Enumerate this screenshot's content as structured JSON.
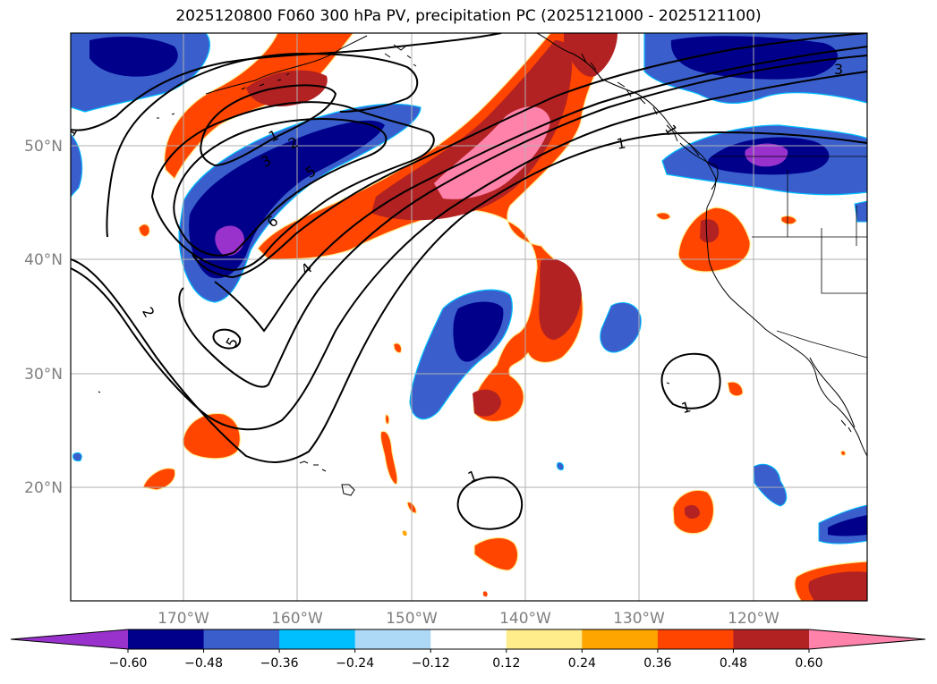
{
  "title": "2025120800 F060 300 hPa PV, precipitation PC (2025121000 - 2025121100)",
  "map": {
    "longitude_labels": [
      "170°W",
      "160°W",
      "150°W",
      "140°W",
      "130°W",
      "120°W"
    ],
    "latitude_labels": [
      "50°N",
      "40°N",
      "30°N",
      "20°N"
    ],
    "pv_contour_labels": [
      "1",
      "1",
      "2",
      "3",
      "4",
      "5",
      "6",
      "5",
      "1",
      "3",
      "1",
      "1",
      "2",
      "1"
    ]
  },
  "colorbar": {
    "ticks": [
      "−0.60",
      "−0.48",
      "−0.36",
      "−0.24",
      "−0.12",
      "0.12",
      "0.24",
      "0.36",
      "0.48",
      "0.60"
    ],
    "colors": [
      "#9932cc",
      "#00008b",
      "#3a5fcd",
      "#00bfff",
      "#add8f6",
      "#ffffff",
      "#ffec8b",
      "#ffa500",
      "#ff4500",
      "#b22222",
      "#ff82ab"
    ],
    "extend": "both"
  },
  "palette": {
    "purple": "#9932cc",
    "navy": "#00008b",
    "royal_blue": "#3a5fcd",
    "deep_sky": "#00bfff",
    "light_blue": "#add8f6",
    "khaki": "#ffec8b",
    "orange": "#ffa500",
    "orange_red": "#ff4500",
    "firebrick": "#b22222",
    "pink": "#ff82ab"
  }
}
